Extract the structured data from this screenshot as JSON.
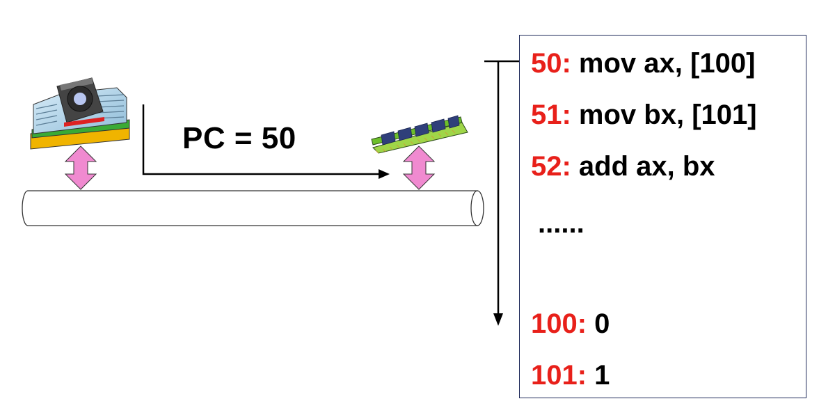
{
  "program_counter": {
    "label": "PC = 50"
  },
  "memory": {
    "rows": [
      {
        "address": "50:",
        "content": " mov ax, [100]"
      },
      {
        "address": "51:",
        "content": " mov bx, [101]"
      },
      {
        "address": "52:",
        "content": " add ax, bx"
      },
      {
        "address": "100:",
        "content": " 0"
      },
      {
        "address": "101:",
        "content": " 1"
      }
    ],
    "ellipsis": "......"
  },
  "colors": {
    "address": "#e8201a",
    "text": "#000000",
    "bus_arrow": "#f08ad0",
    "panel_border": "#1f2a5a"
  },
  "icons": [
    "cpu-chip-icon",
    "memory-module-icon"
  ]
}
